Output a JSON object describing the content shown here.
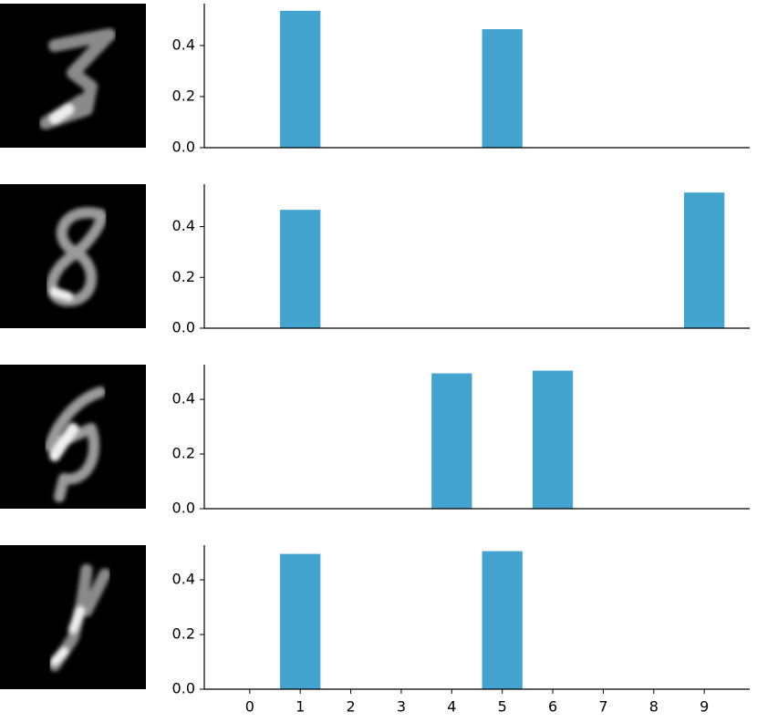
{
  "chart_data": [
    {
      "type": "bar",
      "x": [
        0,
        1,
        2,
        3,
        4,
        5,
        6,
        7,
        8,
        9
      ],
      "values": [
        0,
        0.536,
        0,
        0,
        0,
        0.464,
        0,
        0,
        0,
        0
      ],
      "color": "#42a4cf",
      "xlim": [
        -0.9,
        9.9
      ],
      "ylim": [
        0,
        0.564
      ],
      "yticks": [
        {
          "value": 0,
          "label": "0.0"
        },
        0.2,
        0.4
      ]
    },
    {
      "type": "bar",
      "x": [
        0,
        1,
        2,
        3,
        4,
        5,
        6,
        7,
        8,
        9
      ],
      "values": [
        0,
        0.466,
        0,
        0,
        0,
        0,
        0,
        0,
        0,
        0.534
      ],
      "color": "#42a4cf",
      "xlim": [
        -0.9,
        9.9
      ],
      "ylim": [
        0,
        0.567
      ],
      "yticks": [
        {
          "value": 0,
          "label": "0.0"
        },
        0.2,
        0.4
      ]
    },
    {
      "type": "bar",
      "x": [
        0,
        1,
        2,
        3,
        4,
        5,
        6,
        7,
        8,
        9
      ],
      "values": [
        0,
        0,
        0,
        0,
        0.495,
        0,
        0.505,
        0,
        0,
        0
      ],
      "color": "#42a4cf",
      "xlim": [
        -0.9,
        9.9
      ],
      "ylim": [
        0,
        0.527
      ],
      "yticks": [
        {
          "value": 0,
          "label": "0.0"
        },
        0.2,
        0.4
      ]
    },
    {
      "type": "bar",
      "x": [
        0,
        1,
        2,
        3,
        4,
        5,
        6,
        7,
        8,
        9
      ],
      "values": [
        0,
        0.495,
        0,
        0,
        0,
        0.505,
        0,
        0,
        0,
        0
      ],
      "color": "#42a4cf",
      "xlim": [
        -0.9,
        9.9
      ],
      "ylim": [
        0,
        0.527
      ],
      "yticks": [
        {
          "value": 0,
          "label": "0.0"
        },
        0.2,
        0.4
      ],
      "xticks": [
        0,
        1,
        2,
        3,
        4,
        5,
        6,
        7,
        8,
        9
      ]
    }
  ]
}
